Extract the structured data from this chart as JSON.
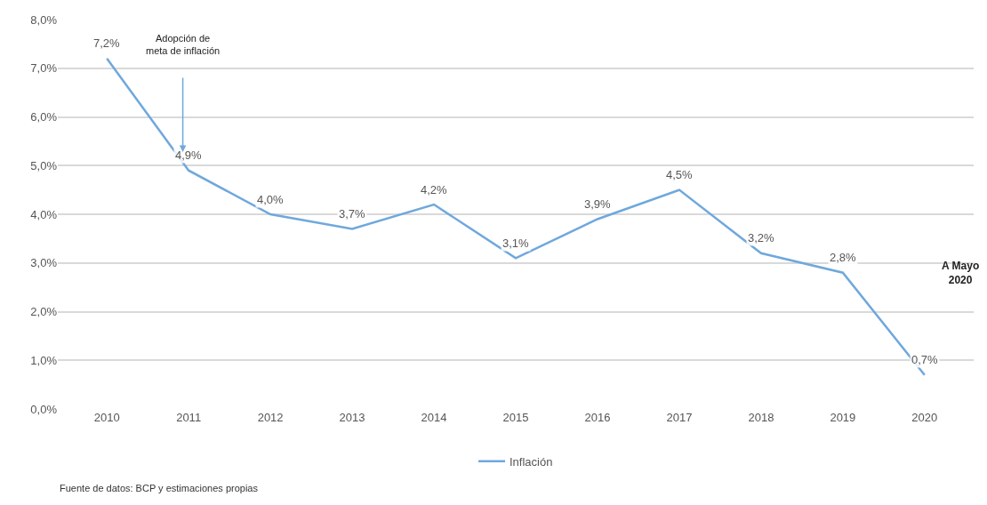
{
  "chart_data": {
    "type": "line",
    "categories": [
      "2010",
      "2011",
      "2012",
      "2013",
      "2014",
      "2015",
      "2016",
      "2017",
      "2018",
      "2019",
      "2020"
    ],
    "series": [
      {
        "name": "Inflación",
        "color": "#6fa8dc",
        "values": [
          7.2,
          4.9,
          4.0,
          3.7,
          4.2,
          3.1,
          3.9,
          4.5,
          3.2,
          2.8,
          0.7
        ],
        "value_labels": [
          "7,2%",
          "4,9%",
          "4,0%",
          "3,7%",
          "4,2%",
          "3,1%",
          "3,9%",
          "4,5%",
          "3,2%",
          "2,8%",
          "0,7%"
        ]
      }
    ],
    "ylim": [
      0,
      8
    ],
    "yticks": [
      {
        "value": 0,
        "label": "0,0%"
      },
      {
        "value": 1,
        "label": "1,0%"
      },
      {
        "value": 2,
        "label": "2,0%"
      },
      {
        "value": 3,
        "label": "3,0%"
      },
      {
        "value": 4,
        "label": "4,0%"
      },
      {
        "value": 5,
        "label": "5,0%"
      },
      {
        "value": 6,
        "label": "6,0%"
      },
      {
        "value": 7,
        "label": "7,0%"
      },
      {
        "value": 8,
        "label": "8,0%"
      }
    ],
    "grid": "y",
    "legend": "bottom",
    "marker": "none",
    "line_style": "solid",
    "annotations": [
      "Adopción de\nmeta de inflación",
      "A Mayo\n2020",
      "Fuente de datos: BCP y estimaciones propias"
    ]
  }
}
